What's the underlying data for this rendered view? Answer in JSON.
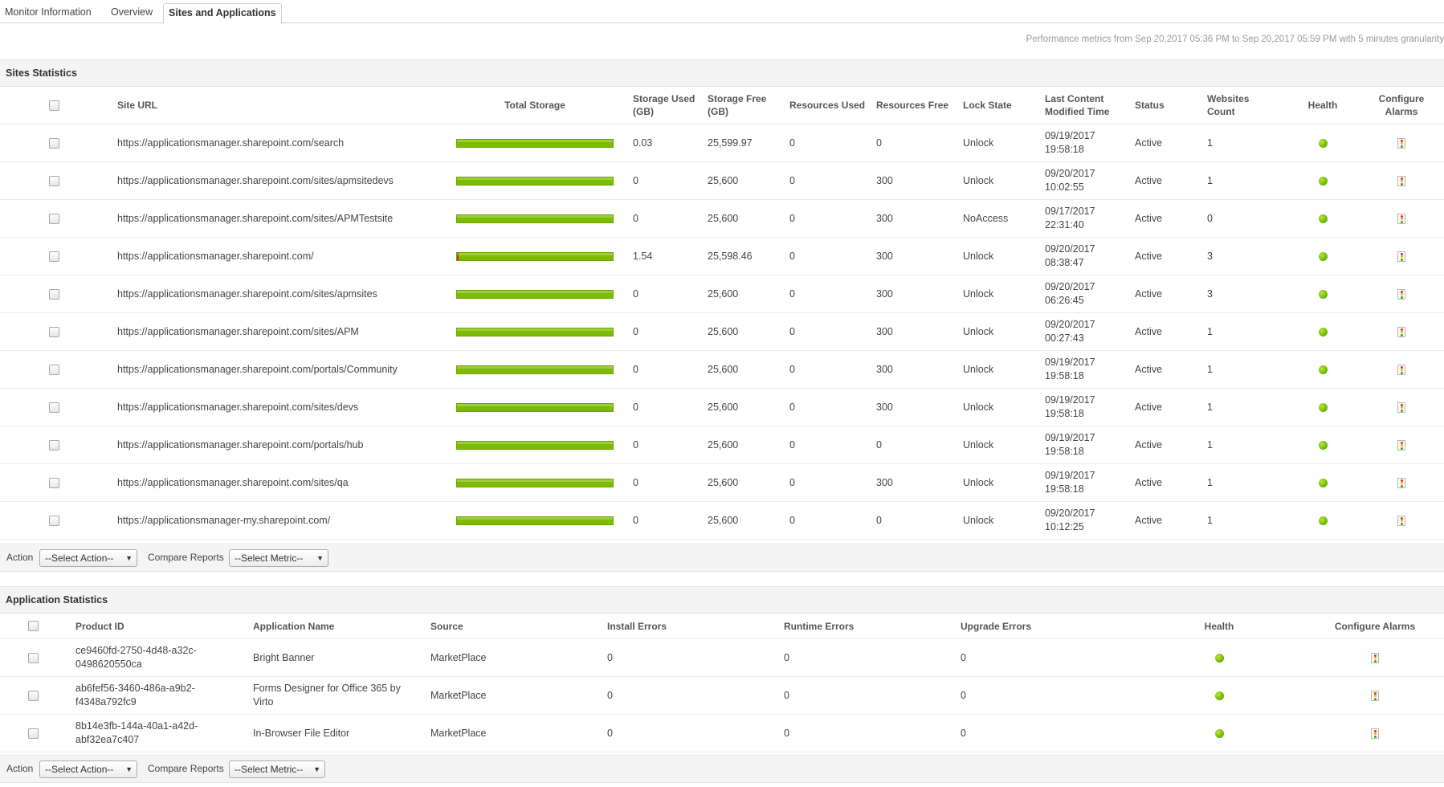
{
  "tabs": [
    {
      "label": "Monitor Information",
      "active": false
    },
    {
      "label": "Overview",
      "active": false
    },
    {
      "label": "Sites and Applications",
      "active": true
    }
  ],
  "performance_note": "Performance metrics from Sep 20,2017 05:36 PM to Sep 20,2017 05:59 PM with 5 minutes granularity",
  "sites": {
    "title": "Sites Statistics",
    "headers": {
      "site_url": "Site URL",
      "total_storage": "Total Storage",
      "storage_used": "Storage Used (GB)",
      "storage_free": "Storage Free (GB)",
      "resources_used": "Resources Used",
      "resources_free": "Resources Free",
      "lock_state": "Lock State",
      "last_modified": "Last Content Modified Time",
      "status": "Status",
      "websites_count": "Websites Count",
      "health": "Health",
      "configure_alarms": "Configure Alarms"
    },
    "rows": [
      {
        "url": "https://applicationsmanager.sharepoint.com/search",
        "used": "0.03",
        "free": "25,599.97",
        "res_used": "0",
        "res_free": "0",
        "lock": "Unlock",
        "date": "09/19/2017",
        "time": "19:58:18",
        "status": "Active",
        "count": "1",
        "used_fraction": 0.0
      },
      {
        "url": "https://applicationsmanager.sharepoint.com/sites/apmsitedevs",
        "used": "0",
        "free": "25,600",
        "res_used": "0",
        "res_free": "300",
        "lock": "Unlock",
        "date": "09/20/2017",
        "time": "10:02:55",
        "status": "Active",
        "count": "1",
        "used_fraction": 0.0
      },
      {
        "url": "https://applicationsmanager.sharepoint.com/sites/APMTestsite",
        "used": "0",
        "free": "25,600",
        "res_used": "0",
        "res_free": "300",
        "lock": "NoAccess",
        "date": "09/17/2017",
        "time": "22:31:40",
        "status": "Active",
        "count": "0",
        "used_fraction": 0.0
      },
      {
        "url": "https://applicationsmanager.sharepoint.com/",
        "used": "1.54",
        "free": "25,598.46",
        "res_used": "0",
        "res_free": "300",
        "lock": "Unlock",
        "date": "09/20/2017",
        "time": "08:38:47",
        "status": "Active",
        "count": "3",
        "used_fraction": 0.01
      },
      {
        "url": "https://applicationsmanager.sharepoint.com/sites/apmsites",
        "used": "0",
        "free": "25,600",
        "res_used": "0",
        "res_free": "300",
        "lock": "Unlock",
        "date": "09/20/2017",
        "time": "06:26:45",
        "status": "Active",
        "count": "3",
        "used_fraction": 0.0
      },
      {
        "url": "https://applicationsmanager.sharepoint.com/sites/APM",
        "used": "0",
        "free": "25,600",
        "res_used": "0",
        "res_free": "300",
        "lock": "Unlock",
        "date": "09/20/2017",
        "time": "00:27:43",
        "status": "Active",
        "count": "1",
        "used_fraction": 0.0
      },
      {
        "url": "https://applicationsmanager.sharepoint.com/portals/Community",
        "used": "0",
        "free": "25,600",
        "res_used": "0",
        "res_free": "300",
        "lock": "Unlock",
        "date": "09/19/2017",
        "time": "19:58:18",
        "status": "Active",
        "count": "1",
        "used_fraction": 0.0
      },
      {
        "url": "https://applicationsmanager.sharepoint.com/sites/devs",
        "used": "0",
        "free": "25,600",
        "res_used": "0",
        "res_free": "300",
        "lock": "Unlock",
        "date": "09/19/2017",
        "time": "19:58:18",
        "status": "Active",
        "count": "1",
        "used_fraction": 0.0
      },
      {
        "url": "https://applicationsmanager.sharepoint.com/portals/hub",
        "used": "0",
        "free": "25,600",
        "res_used": "0",
        "res_free": "0",
        "lock": "Unlock",
        "date": "09/19/2017",
        "time": "19:58:18",
        "status": "Active",
        "count": "1",
        "used_fraction": 0.0
      },
      {
        "url": "https://applicationsmanager.sharepoint.com/sites/qa",
        "used": "0",
        "free": "25,600",
        "res_used": "0",
        "res_free": "300",
        "lock": "Unlock",
        "date": "09/19/2017",
        "time": "19:58:18",
        "status": "Active",
        "count": "1",
        "used_fraction": 0.0
      },
      {
        "url": "https://applicationsmanager-my.sharepoint.com/",
        "used": "0",
        "free": "25,600",
        "res_used": "0",
        "res_free": "0",
        "lock": "Unlock",
        "date": "09/20/2017",
        "time": "10:12:25",
        "status": "Active",
        "count": "1",
        "used_fraction": 0.0
      }
    ],
    "action_bar": {
      "action_label": "Action",
      "action_select": "--Select Action--",
      "compare_label": "Compare Reports",
      "compare_select": "--Select Metric--"
    }
  },
  "applications": {
    "title": "Application Statistics",
    "headers": {
      "product_id": "Product ID",
      "app_name": "Application Name",
      "source": "Source",
      "install_errors": "Install Errors",
      "runtime_errors": "Runtime Errors",
      "upgrade_errors": "Upgrade Errors",
      "health": "Health",
      "configure_alarms": "Configure Alarms"
    },
    "rows": [
      {
        "pid1": "ce9460fd-2750-4d48-a32c-",
        "pid2": "0498620550ca",
        "name1": "Bright Banner",
        "name2": "",
        "source": "MarketPlace",
        "install": "0",
        "runtime": "0",
        "upgrade": "0"
      },
      {
        "pid1": "ab6fef56-3460-486a-a9b2-",
        "pid2": "f4348a792fc9",
        "name1": "Forms Designer for Office 365 by",
        "name2": "Virto",
        "source": "MarketPlace",
        "install": "0",
        "runtime": "0",
        "upgrade": "0"
      },
      {
        "pid1": "8b14e3fb-144a-40a1-a42d-",
        "pid2": "abf32ea7c407",
        "name1": "In-Browser File Editor",
        "name2": "",
        "source": "MarketPlace",
        "install": "0",
        "runtime": "0",
        "upgrade": "0"
      }
    ],
    "action_bar": {
      "action_label": "Action",
      "action_select": "--Select Action--",
      "compare_label": "Compare Reports",
      "compare_select": "--Select Metric--"
    }
  },
  "colors": {
    "health_ok": "#66b000",
    "storage_free": "#7dbb00",
    "storage_used": "#d9261c"
  },
  "icons": {
    "health": "green-status-dot-icon",
    "alarm": "traffic-light-alarm-icon",
    "dropdown": "dropdown-arrow-icon"
  }
}
